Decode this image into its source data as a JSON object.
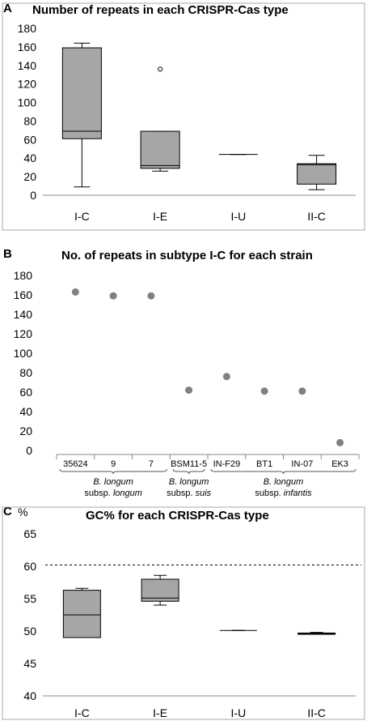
{
  "chart_data": [
    {
      "panel": "A",
      "type": "box",
      "title": "Number of repeats in each CRISPR-Cas type",
      "categories": [
        "I-C",
        "I-E",
        "I-U",
        "II-C"
      ],
      "boxes": [
        {
          "min": 9,
          "q1": 61,
          "median": 69,
          "q3": 159,
          "max": 164,
          "outliers": []
        },
        {
          "min": 26,
          "q1": 29,
          "median": 32,
          "q3": 69,
          "max": 69,
          "outliers": [
            136
          ]
        },
        {
          "min": 44,
          "q1": 44,
          "median": 44,
          "q3": 44,
          "max": 44,
          "outliers": []
        },
        {
          "min": 6,
          "q1": 12,
          "median": 33,
          "q3": 34,
          "max": 43,
          "outliers": []
        }
      ],
      "ylim": [
        0,
        180
      ],
      "yticks": [
        "0",
        "20",
        "40",
        "60",
        "80",
        "100",
        "120",
        "140",
        "160",
        "180"
      ],
      "grid": false
    },
    {
      "panel": "B",
      "type": "scatter",
      "title": "No. of repeats in subtype I-C for each strain",
      "categories": [
        "35624",
        "9",
        "7",
        "BSM11-5",
        "IN-F29",
        "BT1",
        "IN-07",
        "EK3"
      ],
      "values": [
        163,
        159,
        159,
        62,
        76,
        61,
        61,
        8
      ],
      "groups": [
        {
          "line1": "B. longum",
          "line2_pre": "subsp. ",
          "line2_it": "longum"
        },
        {
          "line1": "B. longum",
          "line2_pre": "subsp. ",
          "line2_it": "suis"
        },
        {
          "line1": "B. longum",
          "line2_pre": "subsp. ",
          "line2_it": "infantis"
        }
      ],
      "ylim": [
        0,
        180
      ],
      "yticks": [
        "0",
        "20",
        "40",
        "60",
        "80",
        "100",
        "120",
        "140",
        "160",
        "180"
      ],
      "grid": false
    },
    {
      "panel": "C",
      "type": "box",
      "title": "GC% for each CRISPR-Cas type",
      "ylabel": "%",
      "categories": [
        "I-C",
        "I-E",
        "I-U",
        "II-C"
      ],
      "boxes": [
        {
          "min": 49,
          "q1": 49,
          "median": 52.5,
          "q3": 56.3,
          "max": 56.6
        },
        {
          "min": 54,
          "q1": 54.6,
          "median": 55.1,
          "q3": 58,
          "max": 58.6
        },
        {
          "min": 50.1,
          "q1": 50.1,
          "median": 50.1,
          "q3": 50.1,
          "max": 50.1
        },
        {
          "min": 49.5,
          "q1": 49.5,
          "median": 49.6,
          "q3": 49.7,
          "max": 49.8
        }
      ],
      "reference_line": 60.2,
      "ylim": [
        40,
        65
      ],
      "yticks": [
        "40",
        "45",
        "50",
        "55",
        "60",
        "65"
      ],
      "grid": false
    }
  ]
}
